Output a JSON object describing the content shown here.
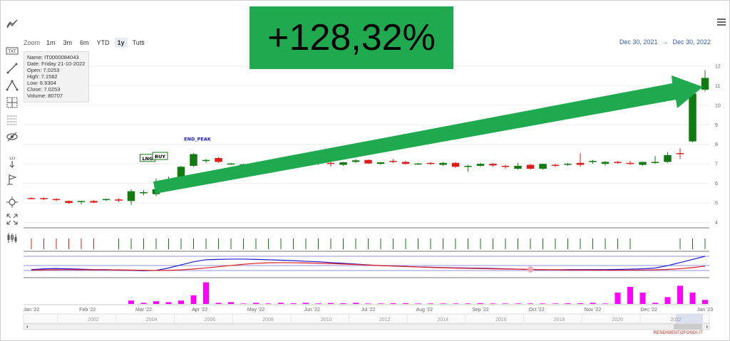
{
  "toolbar": {
    "tools": [
      {
        "name": "indicators-icon"
      },
      {
        "name": "text-annotation-icon",
        "label": "TXT"
      },
      {
        "name": "line-tool-icon"
      },
      {
        "name": "crooked-line-icon"
      },
      {
        "name": "measure-icon"
      },
      {
        "name": "grid-icon"
      },
      {
        "name": "toggle-annotations-icon"
      },
      {
        "name": "vertical-counter-icon",
        "label": "123"
      },
      {
        "name": "flag-icon"
      },
      {
        "name": "zoom-change-icon"
      },
      {
        "name": "fullscreen-icon"
      },
      {
        "name": "series-type-icon"
      }
    ]
  },
  "zoom": {
    "label": "Zoom",
    "buttons": [
      "1m",
      "3m",
      "6m",
      "YTD",
      "1y",
      "Tutti"
    ],
    "selected": "1y"
  },
  "range": {
    "from": "Dec 30, 2021",
    "arrow": "→",
    "to": "Dec 30, 2022"
  },
  "banner": {
    "text": "+128,32%"
  },
  "tooltip": {
    "name": "Name: IT0000084043",
    "date": "Date: Friday 21-10-2022",
    "open": "Open: 7.0253",
    "high": "High: 7.1582",
    "low": "Low: 6.9304",
    "close": "Close: 7.0253",
    "volume": "Volume: 80707"
  },
  "colors": {
    "up": "#117a11",
    "down": "#e21b1b",
    "arrow": "#1faa50",
    "signal_line": "#1a1ad6",
    "ma_line": "#e21b1b",
    "volume": "#ff00ff"
  },
  "chart_data": {
    "type": "candlestick",
    "y_ticks": [
      4,
      5,
      6,
      7,
      8,
      9,
      10,
      11,
      12
    ],
    "ylim": [
      3.8,
      12.4
    ],
    "x_ticks": [
      "Jan '22",
      "Feb '22",
      "Mar '22",
      "Apr '22",
      "May '22",
      "Jun '22",
      "Jul '22",
      "Aug '22",
      "Sep '22",
      "Oct '22",
      "Nov '22",
      "Dec '22",
      "Jan '23"
    ],
    "navigator_years": [
      "2002",
      "2004",
      "2006",
      "2008",
      "2010",
      "2012",
      "2014",
      "2016",
      "2018",
      "2020",
      "2022"
    ],
    "flags": [
      {
        "label": "LNG",
        "week": 10
      },
      {
        "label": "BUY",
        "week": 11
      },
      {
        "label": "END_PEAK",
        "week": 14
      }
    ],
    "candles": [
      {
        "o": 5.25,
        "h": 5.3,
        "l": 5.2,
        "c": 5.22
      },
      {
        "o": 5.25,
        "h": 5.28,
        "l": 5.15,
        "c": 5.2
      },
      {
        "o": 5.2,
        "h": 5.25,
        "l": 5.1,
        "c": 5.15
      },
      {
        "o": 5.1,
        "h": 5.12,
        "l": 4.95,
        "c": 5.0
      },
      {
        "o": 5.05,
        "h": 5.1,
        "l": 4.92,
        "c": 5.1
      },
      {
        "o": 5.1,
        "h": 5.15,
        "l": 5.0,
        "c": 5.02
      },
      {
        "o": 5.15,
        "h": 5.22,
        "l": 5.1,
        "c": 5.2
      },
      {
        "o": 5.18,
        "h": 5.25,
        "l": 5.05,
        "c": 5.12
      },
      {
        "o": 5.1,
        "h": 5.7,
        "l": 4.9,
        "c": 5.6
      },
      {
        "o": 5.5,
        "h": 5.65,
        "l": 5.4,
        "c": 5.55
      },
      {
        "o": 5.45,
        "h": 6.25,
        "l": 5.35,
        "c": 5.7
      },
      {
        "o": 5.7,
        "h": 6.35,
        "l": 5.65,
        "c": 6.1
      },
      {
        "o": 6.2,
        "h": 6.9,
        "l": 6.1,
        "c": 6.85
      },
      {
        "o": 6.9,
        "h": 7.55,
        "l": 6.85,
        "c": 7.5
      },
      {
        "o": 7.15,
        "h": 7.25,
        "l": 7.05,
        "c": 7.2
      },
      {
        "o": 7.3,
        "h": 7.35,
        "l": 7.05,
        "c": 7.1
      },
      {
        "o": 7.0,
        "h": 7.05,
        "l": 6.95,
        "c": 7.02
      },
      {
        "o": 6.95,
        "h": 7.0,
        "l": 6.9,
        "c": 6.98
      },
      {
        "o": 7.0,
        "h": 7.1,
        "l": 6.95,
        "c": 7.05
      },
      {
        "o": 7.0,
        "h": 7.1,
        "l": 6.95,
        "c": 7.02
      },
      {
        "o": 7.05,
        "h": 7.1,
        "l": 6.7,
        "c": 6.95
      },
      {
        "o": 6.95,
        "h": 7.05,
        "l": 6.9,
        "c": 7.0
      },
      {
        "o": 6.98,
        "h": 7.05,
        "l": 6.92,
        "c": 7.03
      },
      {
        "o": 7.05,
        "h": 7.12,
        "l": 6.95,
        "c": 7.08
      },
      {
        "o": 7.05,
        "h": 7.1,
        "l": 6.85,
        "c": 7.0
      },
      {
        "o": 6.95,
        "h": 7.1,
        "l": 6.9,
        "c": 7.08
      },
      {
        "o": 7.1,
        "h": 7.25,
        "l": 7.05,
        "c": 7.18
      },
      {
        "o": 7.2,
        "h": 7.22,
        "l": 7.0,
        "c": 7.02
      },
      {
        "o": 7.0,
        "h": 7.1,
        "l": 6.95,
        "c": 7.08
      },
      {
        "o": 7.15,
        "h": 7.25,
        "l": 7.05,
        "c": 7.1
      },
      {
        "o": 7.1,
        "h": 7.15,
        "l": 6.95,
        "c": 7.0
      },
      {
        "o": 7.0,
        "h": 7.05,
        "l": 6.95,
        "c": 7.02
      },
      {
        "o": 7.05,
        "h": 7.1,
        "l": 6.95,
        "c": 7.0
      },
      {
        "o": 6.95,
        "h": 7.1,
        "l": 6.9,
        "c": 7.05
      },
      {
        "o": 7.05,
        "h": 7.1,
        "l": 6.8,
        "c": 6.85
      },
      {
        "o": 6.85,
        "h": 6.95,
        "l": 6.6,
        "c": 6.9
      },
      {
        "o": 6.9,
        "h": 7.05,
        "l": 6.85,
        "c": 7.0
      },
      {
        "o": 7.0,
        "h": 7.05,
        "l": 6.85,
        "c": 6.92
      },
      {
        "o": 6.9,
        "h": 6.95,
        "l": 6.75,
        "c": 6.85
      },
      {
        "o": 6.75,
        "h": 7.05,
        "l": 6.7,
        "c": 6.9
      },
      {
        "o": 6.95,
        "h": 7.0,
        "l": 6.7,
        "c": 6.75
      },
      {
        "o": 6.75,
        "h": 7.0,
        "l": 6.7,
        "c": 7.0
      },
      {
        "o": 6.95,
        "h": 7.0,
        "l": 6.85,
        "c": 6.9
      },
      {
        "o": 6.95,
        "h": 7.05,
        "l": 6.9,
        "c": 7.0
      },
      {
        "o": 7.05,
        "h": 7.55,
        "l": 6.85,
        "c": 6.95
      },
      {
        "o": 7.1,
        "h": 7.2,
        "l": 7.0,
        "c": 7.15
      },
      {
        "o": 7.0,
        "h": 7.15,
        "l": 6.9,
        "c": 7.1
      },
      {
        "o": 7.1,
        "h": 7.15,
        "l": 7.0,
        "c": 7.05
      },
      {
        "o": 7.05,
        "h": 7.15,
        "l": 6.95,
        "c": 7.0
      },
      {
        "o": 6.95,
        "h": 7.1,
        "l": 6.9,
        "c": 7.1
      },
      {
        "o": 7.05,
        "h": 7.4,
        "l": 7.0,
        "c": 7.1
      },
      {
        "o": 7.1,
        "h": 7.6,
        "l": 7.05,
        "c": 7.45
      },
      {
        "o": 7.55,
        "h": 7.8,
        "l": 7.25,
        "c": 7.5
      },
      {
        "o": 8.15,
        "h": 10.8,
        "l": 8.1,
        "c": 10.6
      },
      {
        "o": 10.8,
        "h": 11.8,
        "l": 10.7,
        "c": 11.4
      }
    ],
    "signals": [
      -1,
      -1,
      -1,
      -1,
      -1,
      -1,
      0,
      1,
      1,
      1,
      1,
      1,
      1,
      1,
      1,
      1,
      1,
      1,
      1,
      1,
      1,
      1,
      1,
      1,
      1,
      1,
      1,
      1,
      1,
      1,
      1,
      1,
      1,
      1,
      1,
      1,
      1,
      1,
      1,
      1,
      1,
      1,
      1,
      1,
      1,
      1,
      1,
      1,
      1,
      0,
      0,
      0,
      1,
      1,
      1
    ],
    "volumes": [
      0.0,
      0.0,
      0.0,
      0.0,
      0.0,
      0.0,
      0.0,
      0.0,
      0.15,
      0.05,
      0.12,
      0.08,
      0.15,
      0.38,
      0.95,
      0.05,
      0.08,
      0.02,
      0.05,
      0.02,
      0.05,
      0.03,
      0.05,
      0.02,
      0.04,
      0.03,
      0.05,
      0.02,
      0.02,
      0.03,
      0.03,
      0.02,
      0.02,
      0.02,
      0.02,
      0.02,
      0.03,
      0.02,
      0.02,
      0.02,
      0.02,
      0.02,
      0.02,
      0.03,
      0.03,
      0.05,
      0.02,
      0.5,
      0.75,
      0.5,
      0.05,
      0.3,
      0.8,
      0.5,
      0.18
    ],
    "signal_line": [
      0.15,
      0.2,
      0.22,
      0.2,
      0.18,
      0.15,
      0.15,
      0.12,
      0.1,
      0.08,
      0.1,
      0.25,
      0.45,
      0.65,
      0.78,
      0.8,
      0.82,
      0.82,
      0.8,
      0.78,
      0.75,
      0.72,
      0.68,
      0.65,
      0.6,
      0.55,
      0.5,
      0.45,
      0.4,
      0.38,
      0.35,
      0.32,
      0.3,
      0.28,
      0.26,
      0.25,
      0.24,
      0.22,
      0.2,
      0.18,
      0.15,
      0.14,
      0.14,
      0.15,
      0.15,
      0.15,
      0.15,
      0.16,
      0.18,
      0.2,
      0.25,
      0.4,
      0.6,
      0.8,
      1.0
    ]
  }
}
